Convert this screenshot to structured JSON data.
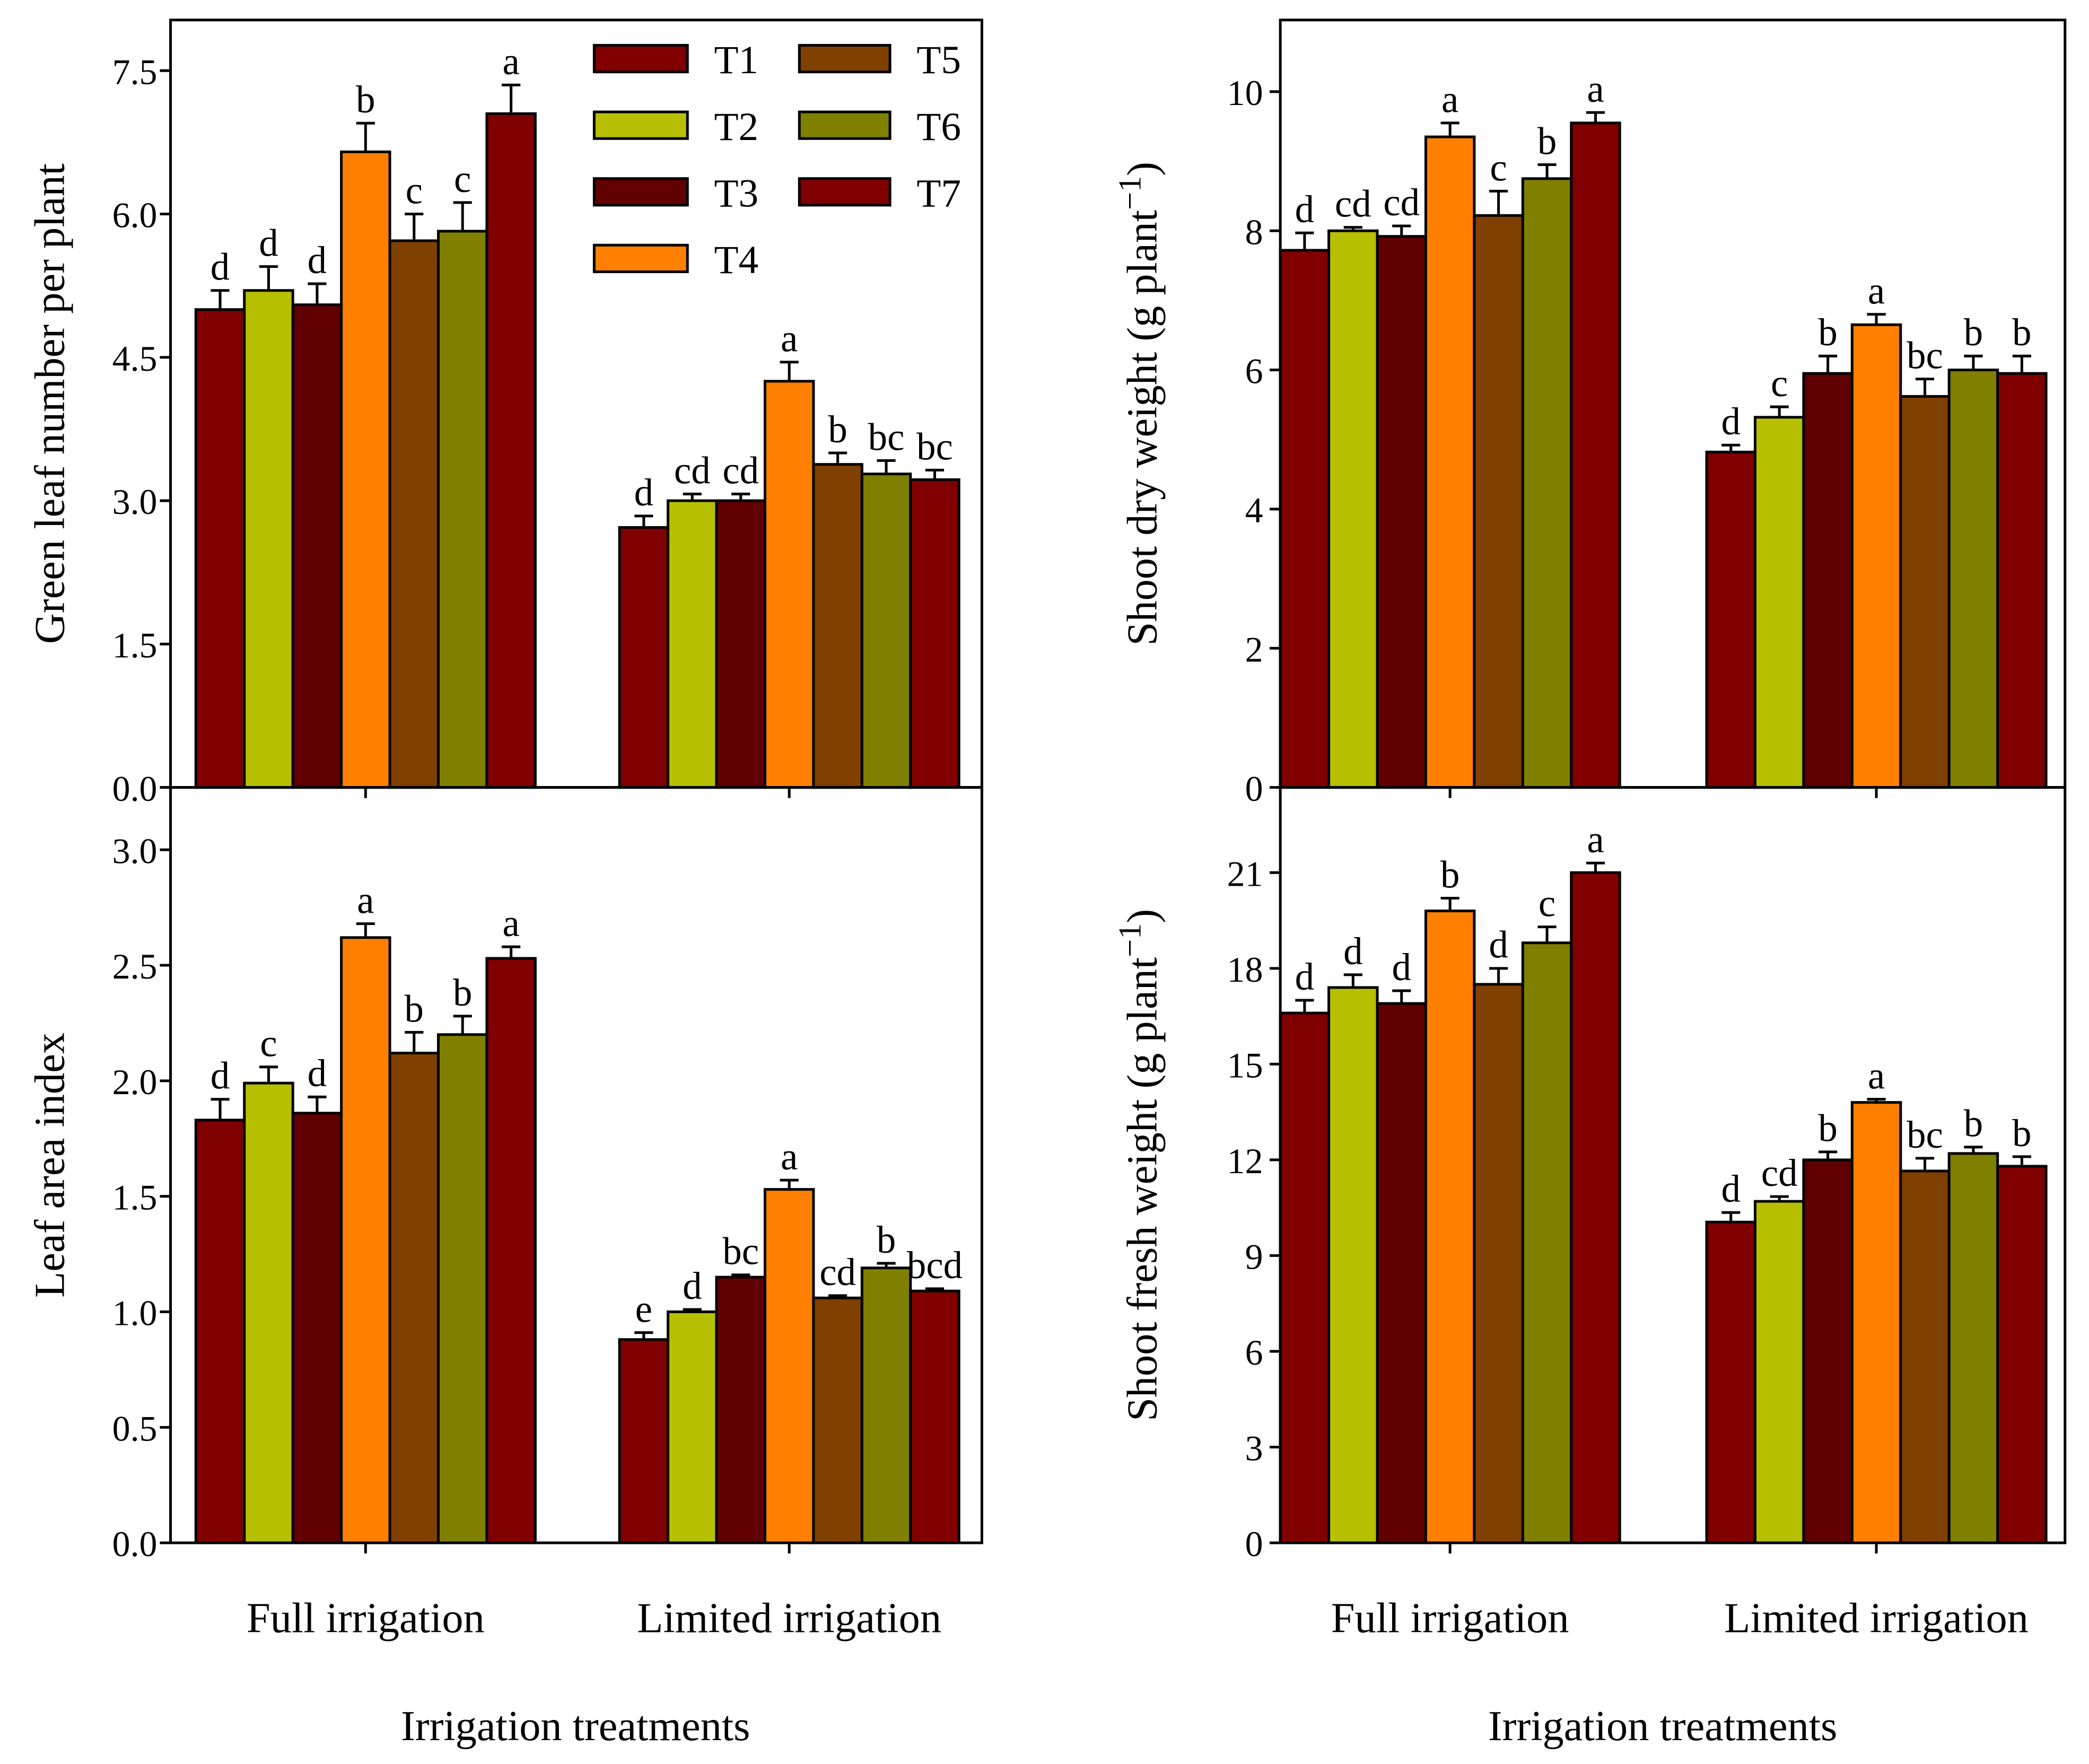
{
  "chart_data": [
    {
      "type": "bar",
      "title": "",
      "xlabel": "",
      "ylabel": "Green leaf number per plant",
      "ylim": [
        0,
        8.03
      ],
      "yticks": [
        "0.0",
        "1.5",
        "3.0",
        "4.5",
        "6.0",
        "7.5"
      ],
      "ytick_values": [
        0,
        1.5,
        3,
        4.5,
        6,
        7.5
      ],
      "categories": [
        "Full irrigation",
        "Limited irrigation"
      ],
      "legend": {
        "placement": "top-right",
        "entries": [
          "T1",
          "T2",
          "T3",
          "T4",
          "T5",
          "T6",
          "T7"
        ]
      },
      "series": [
        {
          "name": "T1",
          "values": [
            5.0,
            2.72
          ],
          "errors": [
            0.2,
            0.12
          ],
          "letters": [
            "d",
            "d"
          ]
        },
        {
          "name": "T2",
          "values": [
            5.2,
            3.0
          ],
          "errors": [
            0.25,
            0.07
          ],
          "letters": [
            "d",
            "cd"
          ]
        },
        {
          "name": "T3",
          "values": [
            5.05,
            3.0
          ],
          "errors": [
            0.22,
            0.07
          ],
          "letters": [
            "d",
            "cd"
          ]
        },
        {
          "name": "T4",
          "values": [
            6.65,
            4.25
          ],
          "errors": [
            0.3,
            0.2
          ],
          "letters": [
            "b",
            "a"
          ]
        },
        {
          "name": "T5",
          "values": [
            5.72,
            3.38
          ],
          "errors": [
            0.28,
            0.12
          ],
          "letters": [
            "c",
            "b"
          ]
        },
        {
          "name": "T6",
          "values": [
            5.82,
            3.28
          ],
          "errors": [
            0.3,
            0.14
          ],
          "letters": [
            "c",
            "bc"
          ]
        },
        {
          "name": "T7",
          "values": [
            7.05,
            3.22
          ],
          "errors": [
            0.3,
            0.1
          ],
          "letters": [
            "a",
            "bc"
          ]
        }
      ]
    },
    {
      "type": "bar",
      "title": "",
      "xlabel": "",
      "ylabel": "Shoot dry weight (g plant",
      "ylabel_sup": "−1",
      "ylabel_close": ")",
      "ylim": [
        0,
        11.03
      ],
      "yticks": [
        "0",
        "2",
        "4",
        "6",
        "8",
        "10"
      ],
      "ytick_values": [
        0,
        2,
        4,
        6,
        8,
        10
      ],
      "categories": [
        "Full irrigation",
        "Limited irrigation"
      ],
      "series": [
        {
          "name": "T1",
          "values": [
            7.72,
            4.82
          ],
          "errors": [
            0.25,
            0.1
          ],
          "letters": [
            "d",
            "d"
          ]
        },
        {
          "name": "T2",
          "values": [
            8.0,
            5.32
          ],
          "errors": [
            0.05,
            0.15
          ],
          "letters": [
            "cd",
            "c"
          ]
        },
        {
          "name": "T3",
          "values": [
            7.92,
            5.95
          ],
          "errors": [
            0.15,
            0.25
          ],
          "letters": [
            "cd",
            "b"
          ]
        },
        {
          "name": "T4",
          "values": [
            9.35,
            6.65
          ],
          "errors": [
            0.2,
            0.15
          ],
          "letters": [
            "a",
            "a"
          ]
        },
        {
          "name": "T5",
          "values": [
            8.22,
            5.62
          ],
          "errors": [
            0.35,
            0.25
          ],
          "letters": [
            "c",
            "bc"
          ]
        },
        {
          "name": "T6",
          "values": [
            8.75,
            6.0
          ],
          "errors": [
            0.2,
            0.2
          ],
          "letters": [
            "b",
            "b"
          ]
        },
        {
          "name": "T7",
          "values": [
            9.55,
            5.95
          ],
          "errors": [
            0.15,
            0.25
          ],
          "letters": [
            "a",
            "b"
          ]
        }
      ]
    },
    {
      "type": "bar",
      "title": "",
      "xlabel": "Irrigation treatments",
      "ylabel": "Leaf area index",
      "ylim": [
        0,
        3.27
      ],
      "yticks": [
        "0.0",
        "0.5",
        "1.0",
        "1.5",
        "2.0",
        "2.5",
        "3.0"
      ],
      "ytick_values": [
        0,
        0.5,
        1,
        1.5,
        2,
        2.5,
        3
      ],
      "categories": [
        "Full irrigation",
        "Limited irrigation"
      ],
      "series": [
        {
          "name": "T1",
          "values": [
            1.83,
            0.88
          ],
          "errors": [
            0.09,
            0.03
          ],
          "letters": [
            "d",
            "e"
          ]
        },
        {
          "name": "T2",
          "values": [
            1.99,
            1.0
          ],
          "errors": [
            0.07,
            0.01
          ],
          "letters": [
            "c",
            "d"
          ]
        },
        {
          "name": "T3",
          "values": [
            1.86,
            1.15
          ],
          "errors": [
            0.07,
            0.01
          ],
          "letters": [
            "d",
            "bc"
          ]
        },
        {
          "name": "T4",
          "values": [
            2.62,
            1.53
          ],
          "errors": [
            0.06,
            0.04
          ],
          "letters": [
            "a",
            "a"
          ]
        },
        {
          "name": "T5",
          "values": [
            2.12,
            1.06
          ],
          "errors": [
            0.09,
            0.01
          ],
          "letters": [
            "b",
            "cd"
          ]
        },
        {
          "name": "T6",
          "values": [
            2.2,
            1.19
          ],
          "errors": [
            0.08,
            0.02
          ],
          "letters": [
            "b",
            "b"
          ]
        },
        {
          "name": "T7",
          "values": [
            2.53,
            1.09
          ],
          "errors": [
            0.05,
            0.01
          ],
          "letters": [
            "a",
            "bcd"
          ]
        }
      ]
    },
    {
      "type": "bar",
      "title": "",
      "xlabel": "Irrigation treatments",
      "ylabel": "Shoot fresh weight (g plant",
      "ylabel_sup": "−1",
      "ylabel_close": ")",
      "ylim": [
        0,
        23.67
      ],
      "yticks": [
        "0",
        "3",
        "6",
        "9",
        "12",
        "15",
        "18",
        "21"
      ],
      "ytick_values": [
        0,
        3,
        6,
        9,
        12,
        15,
        18,
        21
      ],
      "categories": [
        "Full irrigation",
        "Limited irrigation"
      ],
      "series": [
        {
          "name": "T1",
          "values": [
            16.6,
            10.05
          ],
          "errors": [
            0.4,
            0.3
          ],
          "letters": [
            "d",
            "d"
          ]
        },
        {
          "name": "T2",
          "values": [
            17.4,
            10.7
          ],
          "errors": [
            0.4,
            0.15
          ],
          "letters": [
            "d",
            "cd"
          ]
        },
        {
          "name": "T3",
          "values": [
            16.9,
            12.0
          ],
          "errors": [
            0.4,
            0.25
          ],
          "letters": [
            "d",
            "b"
          ]
        },
        {
          "name": "T4",
          "values": [
            19.8,
            13.8
          ],
          "errors": [
            0.4,
            0.1
          ],
          "letters": [
            "b",
            "a"
          ]
        },
        {
          "name": "T5",
          "values": [
            17.5,
            11.65
          ],
          "errors": [
            0.5,
            0.4
          ],
          "letters": [
            "d",
            "bc"
          ]
        },
        {
          "name": "T6",
          "values": [
            18.8,
            12.2
          ],
          "errors": [
            0.5,
            0.2
          ],
          "letters": [
            "c",
            "b"
          ]
        },
        {
          "name": "T7",
          "values": [
            21.0,
            11.8
          ],
          "errors": [
            0.3,
            0.3
          ],
          "letters": [
            "a",
            "b"
          ]
        }
      ]
    }
  ],
  "colors": {
    "T1": "#800000",
    "T2": "#b7c000",
    "T3": "#600000",
    "T4": "#ff8000",
    "T5": "#804000",
    "T6": "#808000",
    "T7": "#800000"
  }
}
